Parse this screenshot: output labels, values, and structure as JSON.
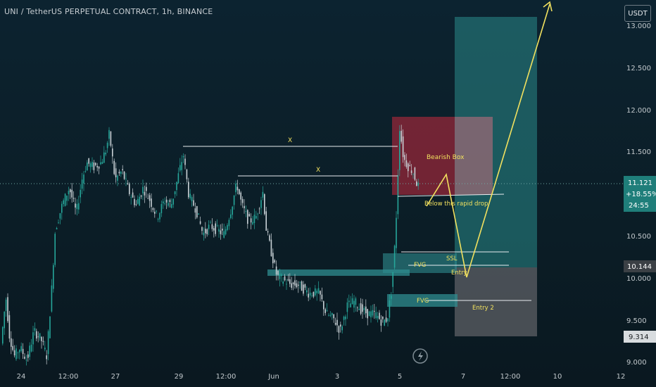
{
  "header": {
    "title": "UNI / TetherUS PERPETUAL CONTRACT, 1h, BINANCE",
    "currency_label": "USDT"
  },
  "price_axis": {
    "labels": [
      "13.000",
      "12.500",
      "12.000",
      "11.500",
      "10.500",
      "10.000",
      "9.500",
      "9.000"
    ],
    "current_price": "11.121",
    "current_change": "+18.55%",
    "countdown": "24:55",
    "level_10144": "10.144",
    "level_9314": "9.314"
  },
  "time_axis": {
    "labels": [
      "24",
      "12:00",
      "27",
      "29",
      "12:00",
      "Jun",
      "3",
      "5",
      "7",
      "12:00",
      "10",
      "12"
    ]
  },
  "annotations": {
    "x_label_1": "X",
    "x_label_2": "X",
    "bearish_box": "Bearish Box",
    "below_drop": "Below this rapid drop",
    "ssl": "SSL",
    "fvg_1": "FVG",
    "entry_1": "Entry",
    "fvg_2": "FVG",
    "entry_2": "Entry 2"
  },
  "icons": {
    "lightning": "lightning-icon"
  },
  "colors": {
    "up": "#26a69a",
    "down": "#c9d1d6",
    "bearish_box": "#b2283b",
    "target_zone": "#2a8a8a",
    "stop_zone": "#5d6066",
    "fvg": "#2f8c8f",
    "path": "#f2e15f",
    "current_tag": "#1f7e7a",
    "level_tag": "#3b4045"
  },
  "chart_data": {
    "type": "candlestick",
    "title": "UNI / TetherUS PERPETUAL CONTRACT, 1h, BINANCE",
    "y_axis_range": [
      9.0,
      13.0
    ],
    "y_ticks": [
      9.0,
      9.5,
      10.0,
      10.5,
      11.5,
      12.0,
      12.5,
      13.0
    ],
    "x_ticks": [
      "24",
      "12:00",
      "27",
      "29",
      "12:00",
      "Jun",
      "3",
      "5",
      "7",
      "12:00",
      "10",
      "12"
    ],
    "price_path_keypoints": [
      {
        "t": "24",
        "price": 9.3
      },
      {
        "t": "12:00",
        "price": 10.5
      },
      {
        "t": "27",
        "price": 11.7
      },
      {
        "t": "29",
        "price": 11.2
      },
      {
        "t": "12:00",
        "price": 10.9
      },
      {
        "t": "Jun",
        "price": 10.1
      },
      {
        "t": "3",
        "price": 9.35
      },
      {
        "t": "5",
        "price": 11.9
      },
      {
        "t": "5",
        "price": 11.121
      }
    ],
    "current_price": 11.121,
    "change_percent": 18.55,
    "marked_levels": [
      {
        "label": "X",
        "price": 11.55
      },
      {
        "label": "X",
        "price": 11.21
      },
      {
        "label": "SSL",
        "price": 10.3
      },
      {
        "label": "Entry",
        "price": 10.15
      },
      {
        "label": "Entry 2",
        "price": 9.72
      }
    ],
    "zones": [
      {
        "label": "Bearish Box",
        "from": 11.0,
        "to": 11.91
      },
      {
        "label": "FVG",
        "from": 10.05,
        "to": 10.2
      },
      {
        "label": "FVG",
        "from": 9.66,
        "to": 9.82
      }
    ],
    "projection": [
      11.05,
      11.25,
      10.0,
      13.1
    ],
    "position_tool": {
      "target_top": 13.0,
      "entry": 10.144,
      "stop": 9.314
    },
    "grid": false,
    "legend": "none"
  }
}
